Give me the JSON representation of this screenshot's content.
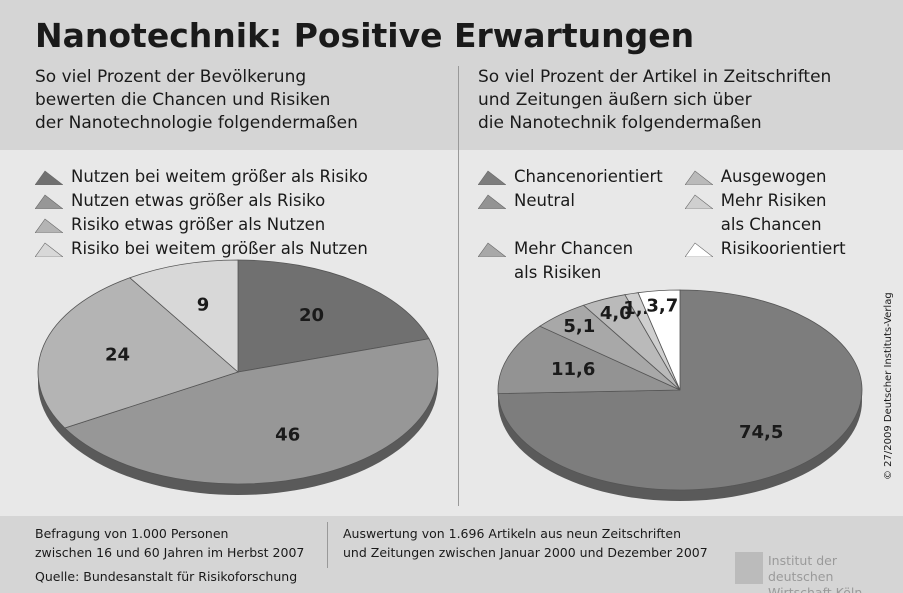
{
  "title": "Nanotechnik: Positive Erwartungen",
  "chart_data": [
    {
      "type": "pie",
      "subtitle": "So viel Prozent der Bevölkerung\nbewerten die Chancen und Risiken\nder Nanotechnologie folgendermaßen",
      "categories": [
        "Nutzen bei weitem größer als Risiko",
        "Nutzen etwas größer als Risiko",
        "Risiko etwas größer als Nutzen",
        "Risiko bei weitem größer als Nutzen"
      ],
      "values": [
        20,
        46,
        24,
        9
      ],
      "colors": [
        "#707070",
        "#979797",
        "#b4b4b4",
        "#d8d8d8"
      ],
      "note": "Befragung von 1.000 Personen\nzwischen 16 und 60 Jahren im Herbst 2007",
      "source": "Quelle: Bundesanstalt für Risikoforschung"
    },
    {
      "type": "pie",
      "subtitle": "So viel Prozent der Artikel in Zeitschriften\nund Zeitungen äußern sich über\ndie Nanotechnik folgendermaßen",
      "categories": [
        "Chancenorientiert",
        "Neutral",
        "Mehr Chancen\nals Risiken",
        "Ausgewogen",
        "Mehr Risiken\nals Chancen",
        "Risikoorientiert"
      ],
      "values": [
        74.5,
        11.6,
        5.1,
        4.0,
        1.2,
        3.7
      ],
      "value_labels": [
        "74,5",
        "11,6",
        "5,1",
        "4,0",
        "1,2",
        "3,7"
      ],
      "colors": [
        "#7d7d7d",
        "#939393",
        "#a8a8a8",
        "#bababa",
        "#cfcfcf",
        "#ffffff"
      ],
      "note": "Auswertung von 1.696 Artikeln aus neun Zeitschriften\nund Zeitungen zwischen Januar 2000 und Dezember 2007"
    }
  ],
  "copyright": "© 27/2009 Deutscher Instituts-Verlag",
  "logo": "Institut der deutschen\nWirtschaft Köln"
}
